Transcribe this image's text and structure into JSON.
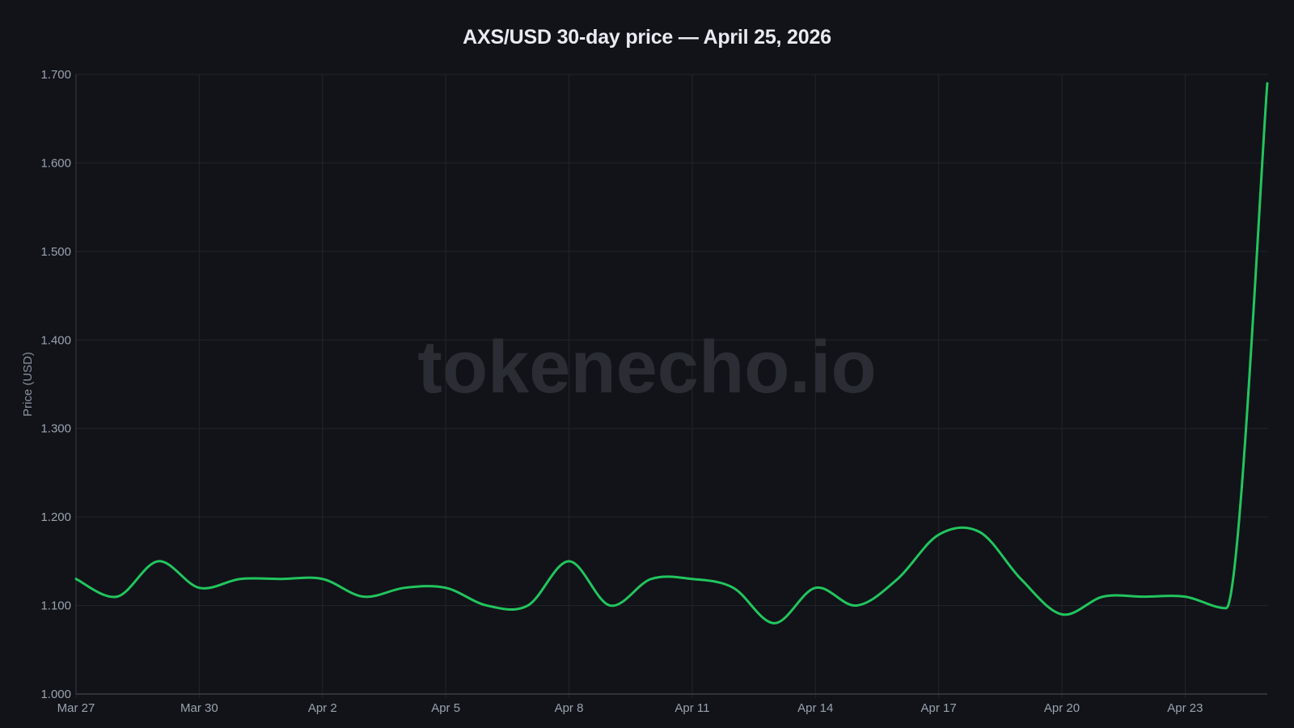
{
  "header": {
    "title": "AXS/USD 30-day price — April 25, 2026"
  },
  "watermark": "tokenecho.io",
  "colors": {
    "background": "#111318",
    "line": "#22c55e",
    "grid": "#22252b",
    "axis": "#3a3e45",
    "tick_text": "#9aa3ae",
    "watermark": "#2a2d33"
  },
  "chart_data": {
    "type": "line",
    "title": "AXS/USD 30-day price — April 25, 2026",
    "xlabel": "",
    "ylabel": "Price (USD)",
    "ylim": [
      1.0,
      1.7
    ],
    "yticks": [
      "1.000",
      "1.100",
      "1.200",
      "1.300",
      "1.400",
      "1.500",
      "1.600",
      "1.700"
    ],
    "xticks": [
      "Mar 27",
      "Mar 30",
      "Apr 2",
      "Apr 5",
      "Apr 8",
      "Apr 11",
      "Apr 14",
      "Apr 17",
      "Apr 20",
      "Apr 23"
    ],
    "grid": true,
    "legend": "none",
    "x": [
      "Mar 27",
      "Mar 28",
      "Mar 29",
      "Mar 30",
      "Mar 31",
      "Apr 1",
      "Apr 2",
      "Apr 3",
      "Apr 4",
      "Apr 5",
      "Apr 6",
      "Apr 7",
      "Apr 8",
      "Apr 9",
      "Apr 10",
      "Apr 11",
      "Apr 12",
      "Apr 13",
      "Apr 14",
      "Apr 15",
      "Apr 16",
      "Apr 17",
      "Apr 18",
      "Apr 19",
      "Apr 20",
      "Apr 21",
      "Apr 22",
      "Apr 23",
      "Apr 24",
      "Apr 25"
    ],
    "series": [
      {
        "name": "AXS/USD",
        "values": [
          1.13,
          1.11,
          1.15,
          1.12,
          1.13,
          1.13,
          1.13,
          1.11,
          1.12,
          1.12,
          1.1,
          1.1,
          1.15,
          1.1,
          1.13,
          1.13,
          1.12,
          1.08,
          1.12,
          1.1,
          1.13,
          1.18,
          1.183,
          1.13,
          1.09,
          1.11,
          1.11,
          1.11,
          1.097,
          1.69
        ]
      }
    ]
  }
}
